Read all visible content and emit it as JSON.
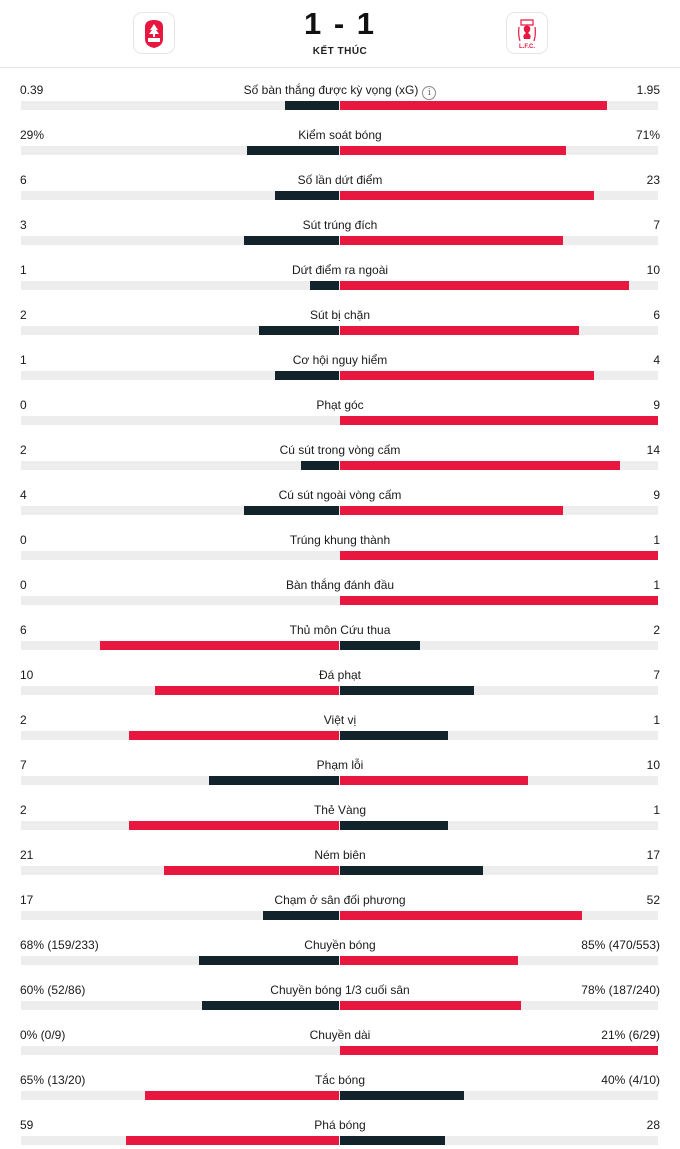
{
  "header": {
    "score": "1 - 1",
    "status": "KẾT THÚC",
    "home_team_icon": "nottingham-forest-crest-icon",
    "away_team_icon": "liverpool-crest-icon",
    "home_color": "#12232c",
    "away_color": "#e8173f"
  },
  "stats": [
    {
      "label": "Số bàn thắng được kỳ vọng (xG)",
      "left": "0.39",
      "right": "1.95",
      "info": true,
      "left_share": 0.17,
      "right_share": 0.84,
      "highlight": "right"
    },
    {
      "label": "Kiểm soát bóng",
      "left": "29%",
      "right": "71%",
      "left_share": 0.29,
      "right_share": 0.71,
      "highlight": "right"
    },
    {
      "label": "Số lần dứt điểm",
      "left": "6",
      "right": "23",
      "left_share": 0.2,
      "right_share": 0.8,
      "highlight": "right"
    },
    {
      "label": "Sút trúng đích",
      "left": "3",
      "right": "7",
      "left_share": 0.3,
      "right_share": 0.7,
      "highlight": "right"
    },
    {
      "label": "Dứt điểm ra ngoài",
      "left": "1",
      "right": "10",
      "left_share": 0.09,
      "right_share": 0.91,
      "highlight": "right"
    },
    {
      "label": "Sút bị chặn",
      "left": "2",
      "right": "6",
      "left_share": 0.25,
      "right_share": 0.75,
      "highlight": "right"
    },
    {
      "label": "Cơ hội nguy hiểm",
      "left": "1",
      "right": "4",
      "left_share": 0.2,
      "right_share": 0.8,
      "highlight": "right"
    },
    {
      "label": "Phạt góc",
      "left": "0",
      "right": "9",
      "left_share": 0,
      "right_share": 1,
      "highlight": "right"
    },
    {
      "label": "Cú sút trong vòng cấm",
      "left": "2",
      "right": "14",
      "left_share": 0.12,
      "right_share": 0.88,
      "highlight": "right"
    },
    {
      "label": "Cú sút ngoài vòng cấm",
      "left": "4",
      "right": "9",
      "left_share": 0.3,
      "right_share": 0.7,
      "highlight": "right"
    },
    {
      "label": "Trúng khung thành",
      "left": "0",
      "right": "1",
      "left_share": 0,
      "right_share": 1,
      "highlight": "right"
    },
    {
      "label": "Bàn thắng đánh đầu",
      "left": "0",
      "right": "1",
      "left_share": 0,
      "right_share": 1,
      "highlight": "right"
    },
    {
      "label": "Thủ môn Cứu thua",
      "left": "6",
      "right": "2",
      "left_share": 0.75,
      "right_share": 0.25,
      "highlight": "left"
    },
    {
      "label": "Đá phạt",
      "left": "10",
      "right": "7",
      "left_share": 0.58,
      "right_share": 0.42,
      "highlight": "left"
    },
    {
      "label": "Việt vị",
      "left": "2",
      "right": "1",
      "left_share": 0.66,
      "right_share": 0.34,
      "highlight": "left"
    },
    {
      "label": "Phạm lỗi",
      "left": "7",
      "right": "10",
      "left_share": 0.41,
      "right_share": 0.59,
      "highlight": "right"
    },
    {
      "label": "Thẻ Vàng",
      "left": "2",
      "right": "1",
      "left_share": 0.66,
      "right_share": 0.34,
      "highlight": "left"
    },
    {
      "label": "Ném biên",
      "left": "21",
      "right": "17",
      "left_share": 0.55,
      "right_share": 0.45,
      "highlight": "left"
    },
    {
      "label": "Chạm ở sân đối phương",
      "left": "17",
      "right": "52",
      "left_share": 0.24,
      "right_share": 0.76,
      "highlight": "right"
    },
    {
      "label": "Chuyền bóng",
      "left": "68% (159/233)",
      "right": "85% (470/553)",
      "left_share": 0.44,
      "right_share": 0.56,
      "highlight": "right"
    },
    {
      "label": "Chuyền bóng 1/3 cuối sân",
      "left": "60% (52/86)",
      "right": "78% (187/240)",
      "left_share": 0.43,
      "right_share": 0.57,
      "highlight": "right"
    },
    {
      "label": "Chuyền dài",
      "left": "0% (0/9)",
      "right": "21% (6/29)",
      "left_share": 0,
      "right_share": 1,
      "highlight": "right"
    },
    {
      "label": "Tắc bóng",
      "left": "65% (13/20)",
      "right": "40% (4/10)",
      "left_share": 0.61,
      "right_share": 0.39,
      "highlight": "left"
    },
    {
      "label": "Phá bóng",
      "left": "59",
      "right": "28",
      "left_share": 0.67,
      "right_share": 0.33,
      "highlight": "left"
    }
  ]
}
